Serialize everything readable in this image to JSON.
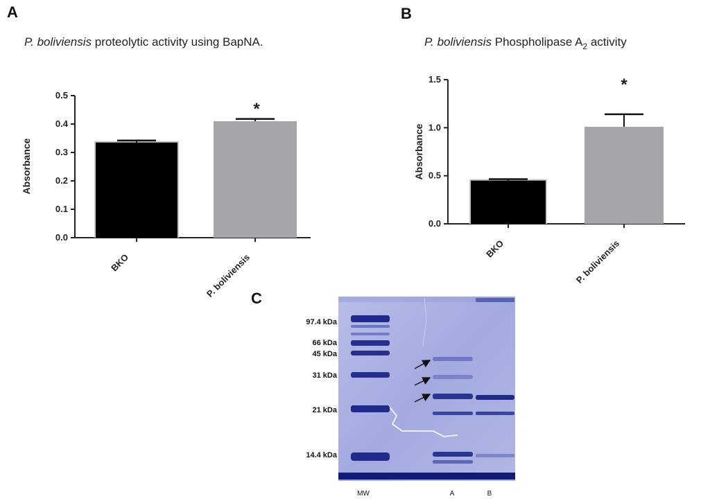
{
  "panels": {
    "a": "A",
    "b": "B",
    "c": "C"
  },
  "chart_data": [
    {
      "type": "bar",
      "panel": "A",
      "title_italic": "P. boliviensis",
      "title_rest": " proteolytic activity using BapNA.",
      "ylabel": "Absorbance",
      "ylim": [
        0,
        0.5
      ],
      "yticks": [
        "0.0",
        "0.1",
        "0.2",
        "0.3",
        "0.4",
        "0.5"
      ],
      "categories": [
        "BKO",
        "P. boliviensis"
      ],
      "values": [
        0.335,
        0.41
      ],
      "errors": [
        0.007,
        0.008
      ],
      "colors": [
        "#000000",
        "#a6a6aa"
      ],
      "significance": [
        "",
        "*"
      ]
    },
    {
      "type": "bar",
      "panel": "B",
      "title_italic": "P. boliviensis",
      "title_rest": " Phospholipase A",
      "title_sub": "2",
      "title_end": " activity",
      "ylabel": "Absorbance",
      "ylim": [
        0,
        1.5
      ],
      "yticks": [
        "0.0",
        "0.5",
        "1.0",
        "1.5"
      ],
      "categories": [
        "BKO",
        "P. boliviensis"
      ],
      "values": [
        0.45,
        1.01
      ],
      "errors": [
        0.015,
        0.13
      ],
      "colors": [
        "#000000",
        "#a6a6aa"
      ],
      "significance": [
        "",
        "*"
      ]
    }
  ],
  "gel": {
    "markers": [
      "97.4 kDa",
      "66 kDa",
      "45 kDa",
      "31 kDa",
      "21 kDa",
      "14.4  kDa"
    ],
    "lanes": [
      "MW",
      "A",
      "B"
    ]
  }
}
